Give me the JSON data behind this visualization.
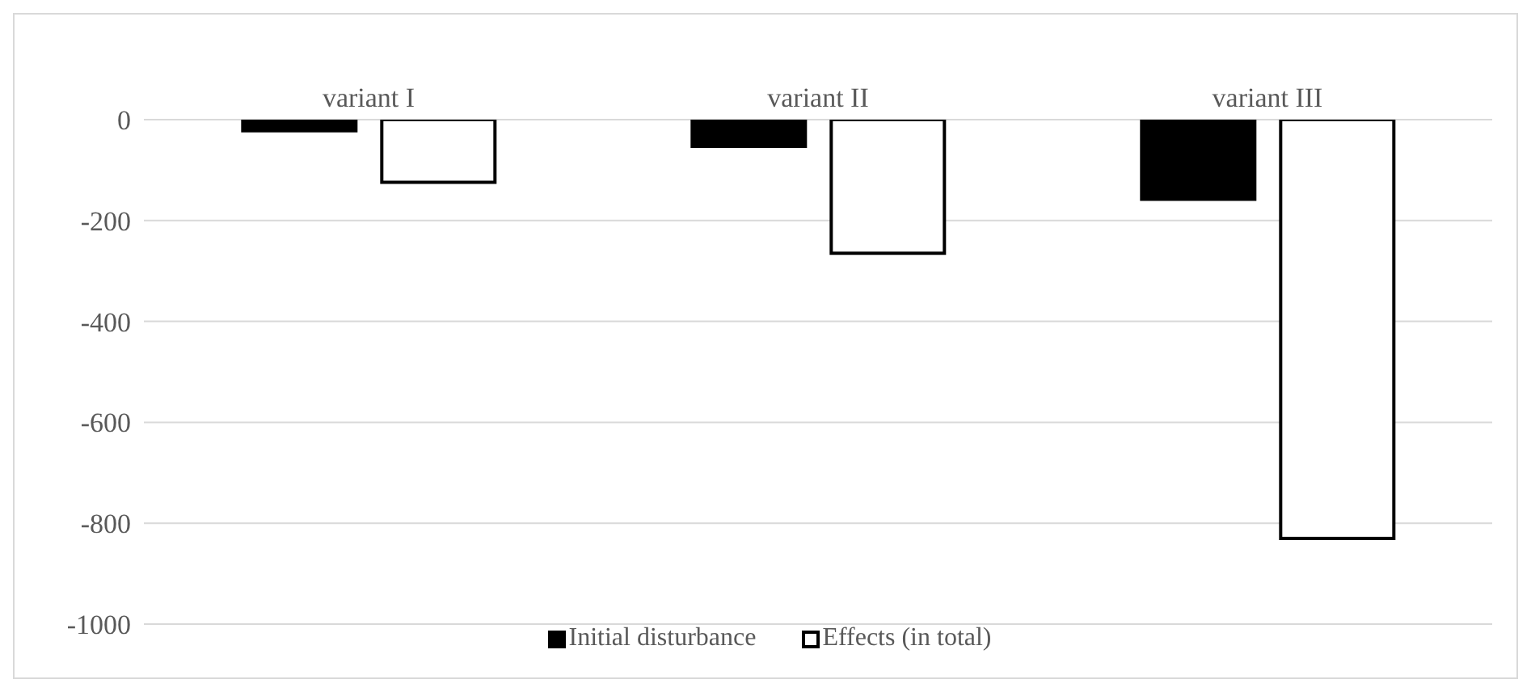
{
  "chart_data": {
    "type": "bar",
    "categories": [
      "variant I",
      "variant II",
      "variant III"
    ],
    "series": [
      {
        "name": "Initial disturbance",
        "color": "#000000",
        "values": [
          -22,
          -53,
          -158
        ]
      },
      {
        "name": "Effects (in total)",
        "color": "#ffffff",
        "values": [
          -124,
          -265,
          -830
        ]
      }
    ],
    "ylim": [
      -1000,
      0
    ],
    "yticks": [
      -1000,
      -800,
      -600,
      -400,
      -200,
      0
    ],
    "grid": "y",
    "legend": "bottom"
  }
}
